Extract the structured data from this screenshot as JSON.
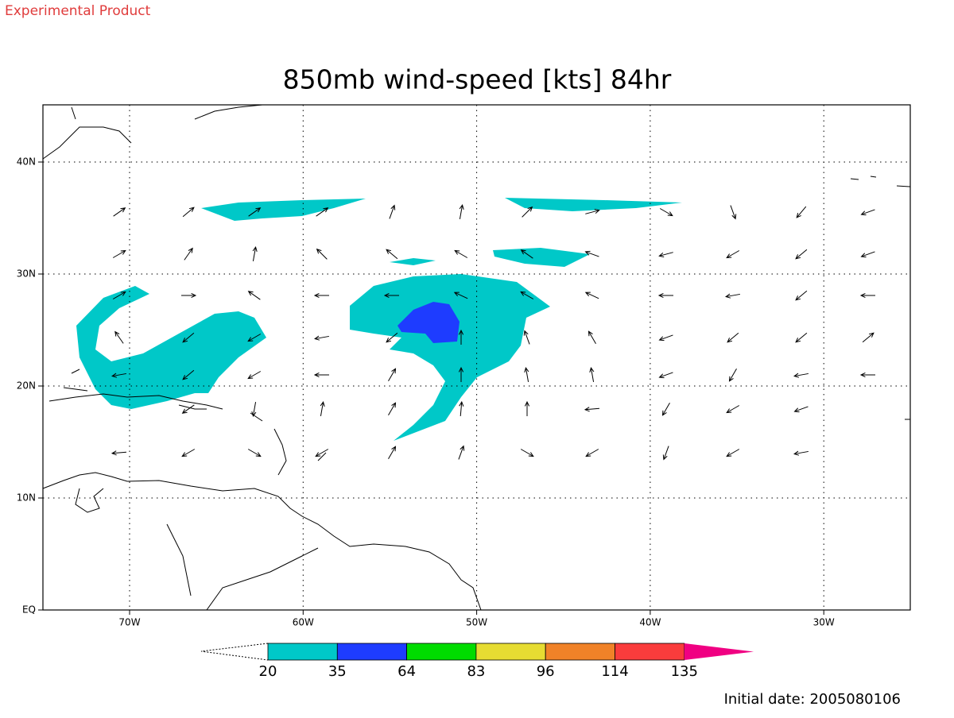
{
  "header": {
    "label": "Experimental Product"
  },
  "title": "850mb wind-speed [kts] 84hr",
  "map": {
    "lon_labels": [
      "70W",
      "60W",
      "50W",
      "40W",
      "30W"
    ],
    "lat_labels": [
      "EQ",
      "10N",
      "20N",
      "30N",
      "40N"
    ]
  },
  "colorbar": {
    "levels": [
      20,
      35,
      64,
      83,
      96,
      114,
      135
    ],
    "colors": [
      "#00c8c8",
      "#1e3cff",
      "#00dc00",
      "#e6dc32",
      "#f08228",
      "#fa3c3c",
      "#f00082"
    ]
  },
  "footer": "Initial date: 2005080106"
}
